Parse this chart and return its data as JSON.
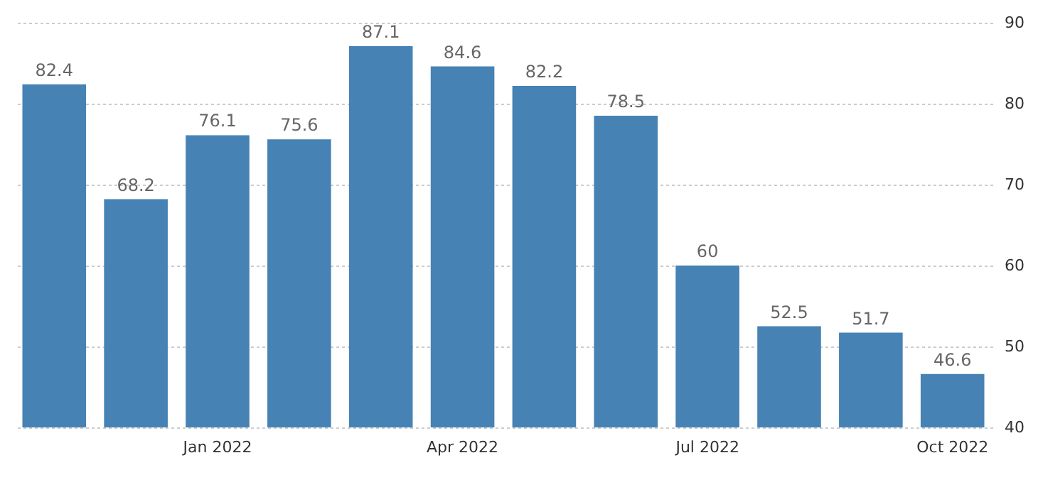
{
  "chart_data": {
    "type": "bar",
    "categories": [
      null,
      null,
      "Jan 2022",
      null,
      null,
      "Apr 2022",
      null,
      null,
      "Jul 2022",
      null,
      null,
      "Oct 2022"
    ],
    "values": [
      82.4,
      68.2,
      76.1,
      75.6,
      87.1,
      84.6,
      82.2,
      78.5,
      60,
      52.5,
      51.7,
      46.6
    ],
    "color": "#4682b4",
    "ylim": [
      40,
      90
    ],
    "yticks": [
      40,
      50,
      60,
      70,
      80,
      90
    ],
    "grid": "y",
    "data_labels": true
  }
}
